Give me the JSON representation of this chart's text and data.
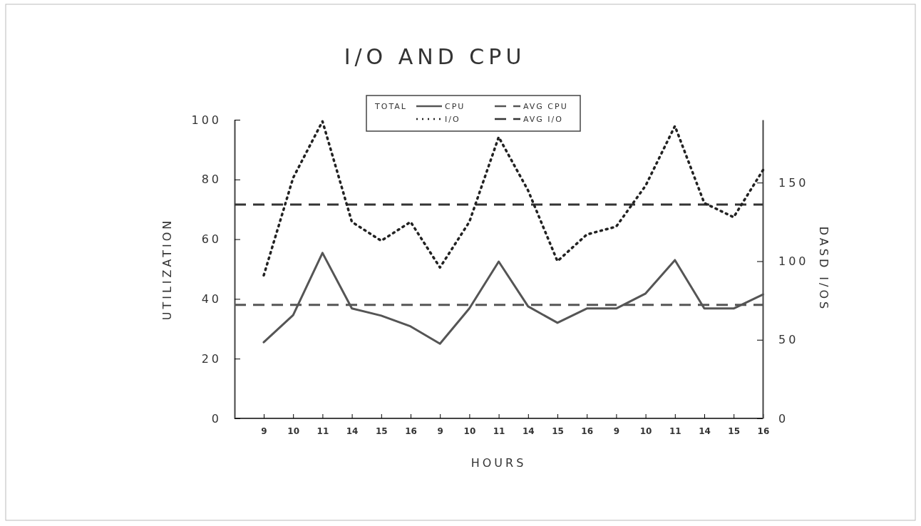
{
  "chart_data": {
    "type": "line",
    "title": "I/O AND CPU",
    "xlabel": "HOURS",
    "ylabel": "UTILIZATION",
    "y2label": "DASD I/OS",
    "legend_title": "TOTAL",
    "categories": [
      "9",
      "10",
      "11",
      "14",
      "15",
      "16",
      "9",
      "10",
      "11",
      "14",
      "15",
      "16",
      "9",
      "10",
      "11",
      "14",
      "15",
      "16"
    ],
    "series": [
      {
        "name": "CPU",
        "color": "#555555",
        "line_style": "solid",
        "values": [
          25.5,
          34.6,
          55.4,
          36.8,
          34.4,
          30.8,
          25,
          36.8,
          52.5,
          37.5,
          32,
          36.8,
          36.8,
          41.8,
          53,
          36.8,
          36.8,
          41.5
        ]
      },
      {
        "name": "I/O",
        "color": "#222222",
        "line_style": "dotted",
        "axis": "y2",
        "values": [
          91,
          153,
          189,
          125,
          113,
          125,
          96,
          125,
          179,
          145,
          100,
          117,
          122,
          148,
          186,
          137,
          128,
          158
        ]
      }
    ],
    "ref_lines": [
      {
        "axis": "y",
        "value": 38,
        "label": "AVG CPU",
        "color": "#555555",
        "line_style": "dashed"
      },
      {
        "axis": "y2",
        "value": 136,
        "label": "AVG I/O",
        "color": "#333333",
        "line_style": "dashed"
      }
    ],
    "ylim": [
      0,
      100
    ],
    "yticks": [
      0,
      20,
      40,
      60,
      80,
      100
    ],
    "y2lim": [
      0,
      190
    ],
    "y2ticks": [
      0,
      50,
      100,
      150
    ],
    "legend": "top",
    "grid": false
  }
}
